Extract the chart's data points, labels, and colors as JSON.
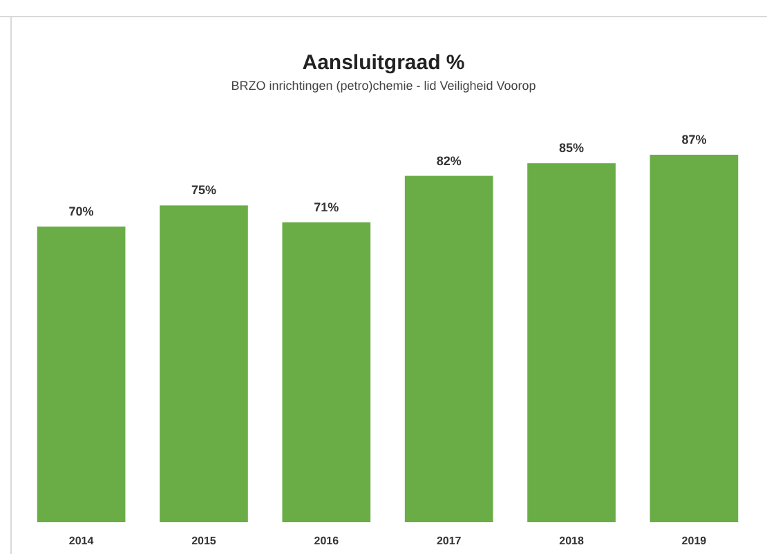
{
  "chart_data": {
    "type": "bar",
    "title": "Aansluitgraad %",
    "subtitle": "BRZO inrichtingen (petro)chemie - lid Veiligheid Voorop",
    "categories": [
      "2014",
      "2015",
      "2016",
      "2017",
      "2018",
      "2019"
    ],
    "values": [
      70,
      75,
      71,
      82,
      85,
      87
    ],
    "value_labels": [
      "70%",
      "75%",
      "71%",
      "82%",
      "85%",
      "87%"
    ],
    "color": "#6aad47"
  }
}
